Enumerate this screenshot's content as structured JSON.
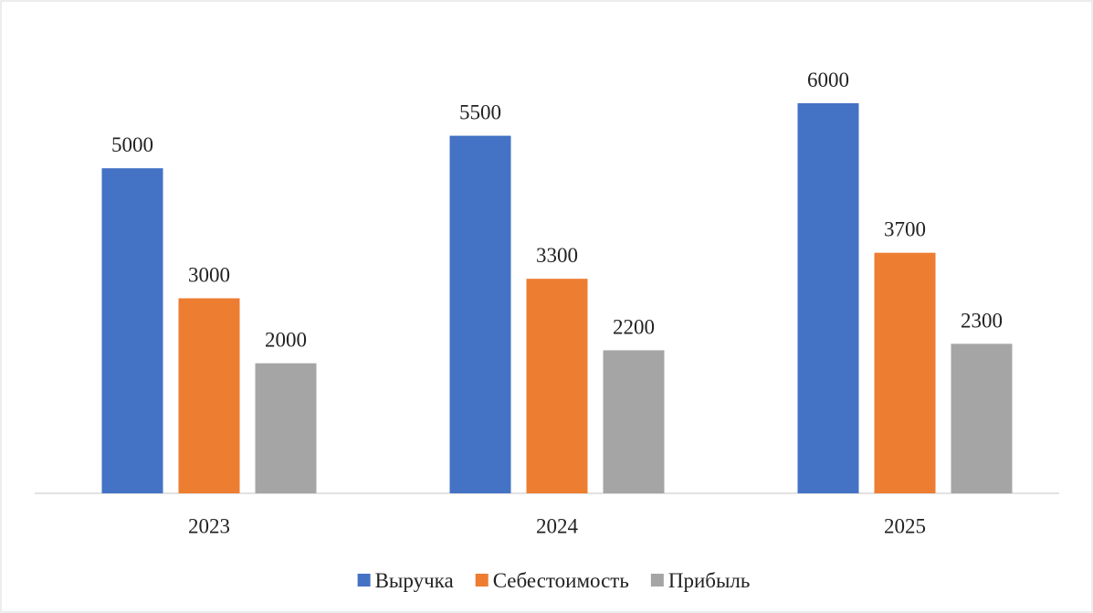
{
  "chart_data": {
    "type": "bar",
    "categories": [
      "2023",
      "2024",
      "2025"
    ],
    "series": [
      {
        "name": "Выручка",
        "color": "#4472c4",
        "values": [
          5000,
          5500,
          6000
        ]
      },
      {
        "name": "Себестоимость",
        "color": "#ed7d31",
        "values": [
          3000,
          3300,
          3700
        ]
      },
      {
        "name": "Прибыль",
        "color": "#a5a5a5",
        "values": [
          2000,
          2200,
          2300
        ]
      }
    ],
    "legend": "bottom"
  }
}
